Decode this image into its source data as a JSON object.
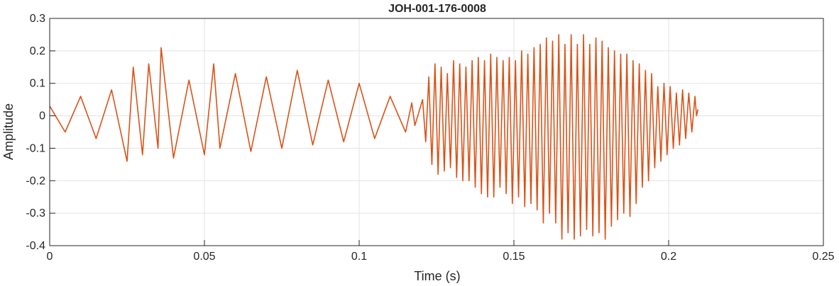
{
  "chart_data": {
    "type": "line",
    "title": "JOH-001-176-0008",
    "xlabel": "Time (s)",
    "ylabel": "Amplitude",
    "xlim": [
      0,
      0.25
    ],
    "ylim": [
      -0.4,
      0.3
    ],
    "grid": true,
    "line_color": "#D95319",
    "x_ticks": [
      {
        "value": 0,
        "label": "0"
      },
      {
        "value": 0.05,
        "label": "0.05"
      },
      {
        "value": 0.1,
        "label": "0.1"
      },
      {
        "value": 0.15,
        "label": "0.15"
      },
      {
        "value": 0.2,
        "label": "0.2"
      },
      {
        "value": 0.25,
        "label": "0.25"
      }
    ],
    "y_ticks": [
      {
        "value": 0.3,
        "label": "0.3"
      },
      {
        "value": 0.2,
        "label": "0.2"
      },
      {
        "value": 0.1,
        "label": "0.1"
      },
      {
        "value": 0,
        "label": "0"
      },
      {
        "value": -0.1,
        "label": "-0.1"
      },
      {
        "value": -0.2,
        "label": "-0.2"
      },
      {
        "value": -0.3,
        "label": "-0.3"
      },
      {
        "value": -0.4,
        "label": "-0.4"
      }
    ],
    "series": [
      {
        "x": [
          0.0,
          0.005,
          0.01,
          0.015,
          0.02,
          0.025,
          0.027,
          0.03,
          0.032,
          0.035,
          0.036,
          0.04,
          0.045,
          0.05,
          0.053,
          0.055,
          0.06,
          0.065,
          0.07,
          0.075,
          0.08,
          0.085,
          0.09,
          0.095,
          0.1,
          0.105,
          0.11,
          0.115,
          0.117,
          0.118,
          0.1205,
          0.1215,
          0.1225,
          0.1235,
          0.1245,
          0.1255,
          0.1265,
          0.1275,
          0.1285,
          0.1295,
          0.1305,
          0.1315,
          0.1325,
          0.1335,
          0.1345,
          0.1355,
          0.1365,
          0.1375,
          0.1385,
          0.1395,
          0.1405,
          0.1415,
          0.1425,
          0.1435,
          0.1445,
          0.1455,
          0.1465,
          0.1475,
          0.1485,
          0.1495,
          0.1505,
          0.1515,
          0.1525,
          0.1535,
          0.1545,
          0.1555,
          0.1565,
          0.1575,
          0.1585,
          0.1595,
          0.1605,
          0.1615,
          0.1625,
          0.1635,
          0.1645,
          0.1655,
          0.1665,
          0.1675,
          0.1685,
          0.1695,
          0.1705,
          0.1715,
          0.1725,
          0.1735,
          0.1745,
          0.1755,
          0.1765,
          0.1775,
          0.1785,
          0.1795,
          0.1805,
          0.1815,
          0.1825,
          0.1835,
          0.1845,
          0.1855,
          0.1865,
          0.1875,
          0.1885,
          0.1895,
          0.1905,
          0.1915,
          0.1925,
          0.1935,
          0.1945,
          0.1955,
          0.1965,
          0.1975,
          0.1985,
          0.1995,
          0.2005,
          0.2015,
          0.2025,
          0.2035,
          0.2045,
          0.2055,
          0.2065,
          0.2075,
          0.2085,
          0.209,
          0.2095
        ],
        "y": [
          0.03,
          -0.05,
          0.06,
          -0.07,
          0.08,
          -0.14,
          0.15,
          -0.12,
          0.16,
          -0.1,
          0.21,
          -0.13,
          0.11,
          -0.12,
          0.16,
          -0.1,
          0.13,
          -0.11,
          0.12,
          -0.1,
          0.14,
          -0.09,
          0.11,
          -0.08,
          0.1,
          -0.07,
          0.06,
          -0.05,
          0.04,
          -0.03,
          0.05,
          -0.08,
          0.12,
          -0.15,
          0.16,
          -0.18,
          0.15,
          -0.17,
          0.13,
          -0.16,
          0.17,
          -0.19,
          0.16,
          -0.2,
          0.15,
          -0.2,
          0.17,
          -0.22,
          0.18,
          -0.24,
          0.17,
          -0.25,
          0.19,
          -0.25,
          0.18,
          -0.22,
          0.17,
          -0.24,
          0.18,
          -0.27,
          0.17,
          -0.25,
          0.2,
          -0.28,
          0.19,
          -0.27,
          0.21,
          -0.29,
          0.22,
          -0.33,
          0.24,
          -0.3,
          0.23,
          -0.33,
          0.25,
          -0.38,
          0.22,
          -0.36,
          0.25,
          -0.38,
          0.22,
          -0.37,
          0.25,
          -0.35,
          0.22,
          -0.37,
          0.24,
          -0.36,
          0.23,
          -0.38,
          0.21,
          -0.34,
          0.2,
          -0.32,
          0.19,
          -0.3,
          0.19,
          -0.31,
          0.17,
          -0.27,
          0.16,
          -0.22,
          0.14,
          -0.2,
          0.13,
          -0.16,
          0.09,
          -0.14,
          0.1,
          -0.12,
          0.09,
          -0.1,
          0.07,
          -0.09,
          0.08,
          -0.07,
          0.07,
          -0.05,
          0.06,
          0.0,
          0.02
        ]
      }
    ]
  }
}
